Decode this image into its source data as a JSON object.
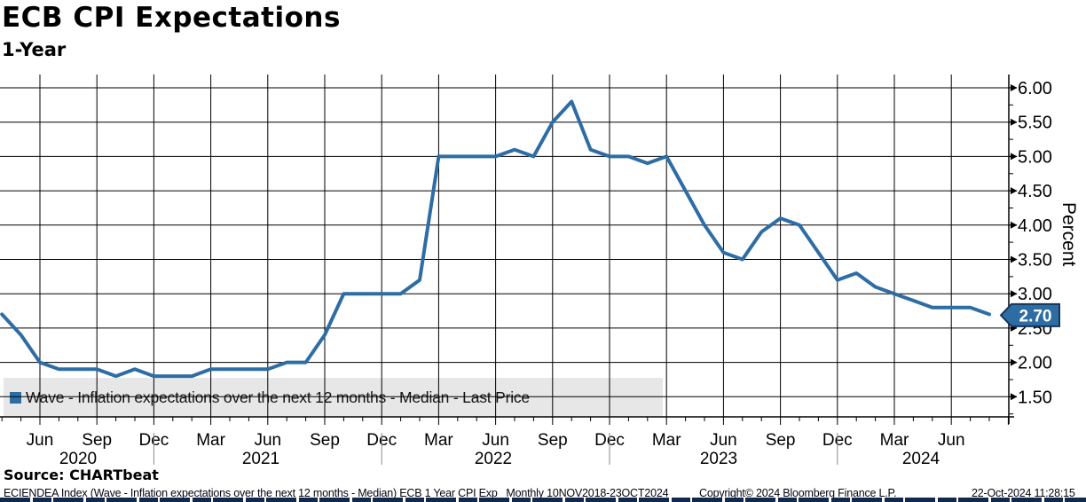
{
  "header": {
    "title": "ECB CPI Expectations",
    "subtitle": "1-Year"
  },
  "legend": {
    "label": "Wave - Inflation expectations over the next 12 months - Median - Last Price",
    "swatch_color": "#2e6da4"
  },
  "source": {
    "label": "Source: CHARTbeat"
  },
  "footer": {
    "description": "ECIENDEA Index (Wave - Inflation expectations over the next 12 months - Median) ECB 1 Year CPI Exp   Monthly 10NOV2018-23OCT2024",
    "copyright": "Copyright© 2024 Bloomberg Finance L.P.",
    "timestamp": "22-Oct-2024 11:28:15"
  },
  "chart_data": {
    "type": "line",
    "title": "ECB CPI Expectations",
    "subtitle": "1-Year",
    "ylabel": "Percent",
    "legend": "Wave - Inflation expectations over the next 12 months - Median - Last Price",
    "line_color": "#2e6da4",
    "frequency": "monthly",
    "start_month": "2020-04",
    "end_month": "2024-08",
    "values": [
      2.7,
      2.4,
      2.0,
      1.9,
      1.9,
      1.9,
      1.8,
      1.9,
      1.8,
      1.8,
      1.8,
      1.9,
      1.9,
      1.9,
      1.9,
      2.0,
      2.0,
      2.4,
      3.0,
      3.0,
      3.0,
      3.0,
      3.2,
      5.0,
      5.0,
      5.0,
      5.0,
      5.1,
      5.0,
      5.5,
      5.8,
      5.1,
      5.0,
      5.0,
      4.9,
      5.0,
      4.5,
      4.0,
      3.6,
      3.5,
      3.9,
      4.1,
      4.0,
      3.6,
      3.2,
      3.3,
      3.1,
      3.0,
      2.9,
      2.8,
      2.8,
      2.8,
      2.7
    ],
    "last_price": "2.70",
    "y_tick_labels": [
      "6.00",
      "5.50",
      "5.00",
      "4.50",
      "4.00",
      "3.50",
      "3.00",
      "2.50",
      "2.00",
      "1.50"
    ],
    "x_quarter_labels": [
      "Jun",
      "Sep",
      "Dec",
      "Mar",
      "Jun",
      "Sep",
      "Dec",
      "Mar",
      "Jun",
      "Sep",
      "Dec",
      "Mar",
      "Jun",
      "Sep",
      "Dec",
      "Mar",
      "Jun"
    ],
    "year_labels": [
      "2020",
      "2021",
      "2022",
      "2023",
      "2024"
    ],
    "ylim": [
      1.2,
      6.25
    ],
    "grid": true,
    "legend_position": "bottom-left",
    "y_axis_side": "right"
  }
}
